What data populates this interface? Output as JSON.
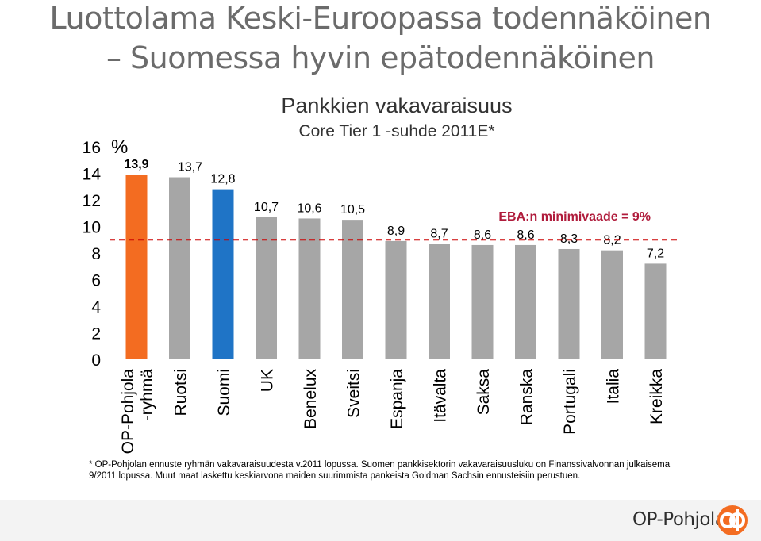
{
  "slide": {
    "title_line1": "Luottolama Keski-Euroopassa todennäköinen",
    "title_line2": "– Suomessa hyvin epätodennäköinen"
  },
  "chart_data": {
    "type": "bar",
    "title": "Pankkien vakavaraisuus",
    "subtitle": "Core Tier 1 -suhde 2011E*",
    "ylabel": "%",
    "ylim": [
      0,
      16
    ],
    "yticks": [
      0,
      2,
      4,
      6,
      8,
      10,
      12,
      14,
      16
    ],
    "categories": [
      "OP-Pohjola\n-ryhmä",
      "Ruotsi",
      "Suomi",
      "UK",
      "Benelux",
      "Sveitsi",
      "Espanja",
      "Itävalta",
      "Saksa",
      "Ranska",
      "Portugali",
      "Italia",
      "Kreikka"
    ],
    "values": [
      13.9,
      13.7,
      12.8,
      10.7,
      10.6,
      10.5,
      8.9,
      8.7,
      8.6,
      8.6,
      8.3,
      8.2,
      7.2
    ],
    "value_labels": [
      "13,9",
      "13,7",
      "12,8",
      "10,7",
      "10,6",
      "10,5",
      "8,9",
      "8,7",
      "8,6",
      "8,6",
      "8,3",
      "8,2",
      "7,2"
    ],
    "bar_colors": [
      "#f36c21",
      "#a6a6a6",
      "#1f74c6",
      "#a6a6a6",
      "#a6a6a6",
      "#a6a6a6",
      "#a6a6a6",
      "#a6a6a6",
      "#a6a6a6",
      "#a6a6a6",
      "#a6a6a6",
      "#a6a6a6",
      "#a6a6a6"
    ],
    "bold_labels": [
      true,
      false,
      false,
      false,
      false,
      false,
      false,
      false,
      false,
      false,
      false,
      false,
      false
    ],
    "threshold": {
      "value": 9,
      "label": "EBA:n minimivaade = 9%",
      "color": "#cc0000",
      "label_color": "#b01c3c"
    },
    "grid": false,
    "legend": "none"
  },
  "footnote": "* OP-Pohjolan ennuste ryhmän vakavaraisuudesta v.2011 lopussa. Suomen pankkisektorin vakavaraisuusluku on Finanssivalvonnan julkaisema 9/2011 lopussa. Muut maat laskettu keskiarvona maiden suurimmista pankeista Goldman Sachsin ennusteisiin perustuen.",
  "brand": {
    "name": "OP-Pohjola",
    "logo_color": "#f36c21"
  }
}
